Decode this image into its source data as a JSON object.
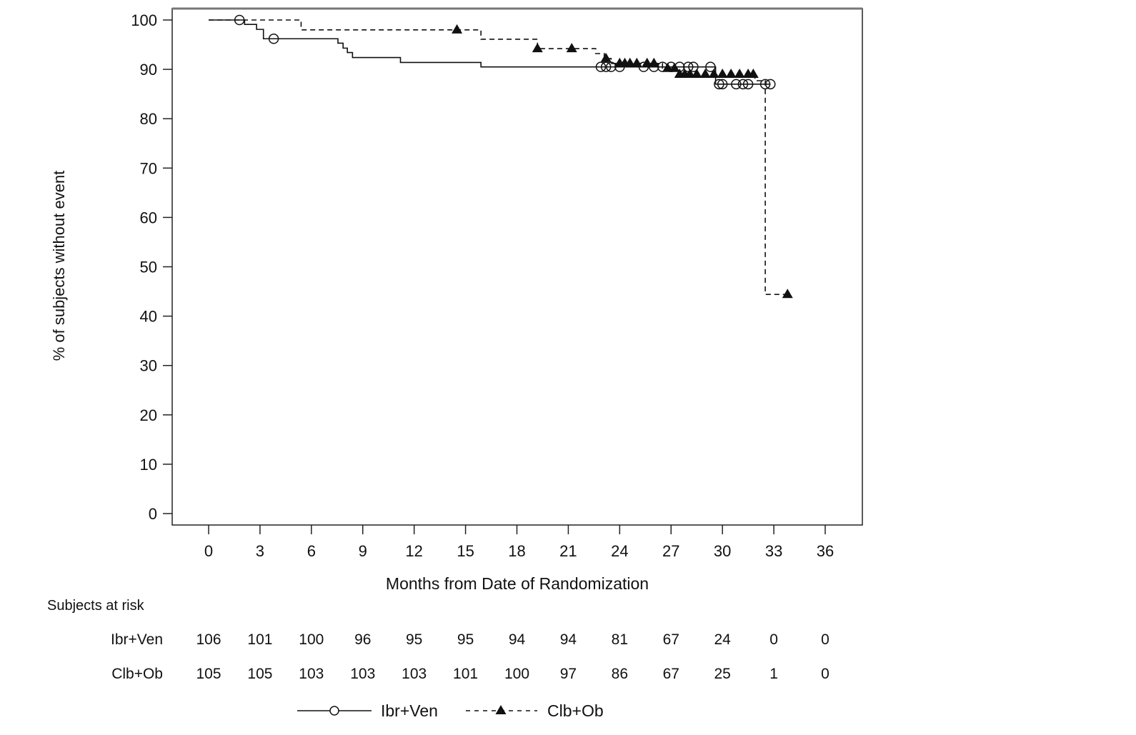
{
  "chart_data": {
    "type": "line",
    "subtype": "kaplan-meier",
    "title": "",
    "xlabel": "Months from Date of Randomization",
    "ylabel": "% of subjects without event",
    "xlim": [
      0,
      36
    ],
    "ylim": [
      0,
      100
    ],
    "x_ticks": [
      0,
      3,
      6,
      9,
      12,
      15,
      18,
      21,
      24,
      27,
      30,
      33,
      36
    ],
    "y_ticks": [
      0,
      10,
      20,
      30,
      40,
      50,
      60,
      70,
      80,
      90,
      100
    ],
    "grid": false,
    "legend_position": "bottom",
    "series": [
      {
        "name": "Ibr+Ven",
        "line_style": "solid",
        "marker": "open-circle",
        "color": "#111111",
        "steps": [
          [
            0,
            100
          ],
          [
            2.1,
            99.1
          ],
          [
            2.8,
            98.1
          ],
          [
            3.2,
            96.2
          ],
          [
            7.55,
            95.3
          ],
          [
            7.85,
            94.3
          ],
          [
            8.1,
            93.4
          ],
          [
            8.4,
            92.4
          ],
          [
            11.2,
            91.4
          ],
          [
            15.9,
            90.5
          ],
          [
            29.6,
            87.0
          ]
        ],
        "end": 32.8,
        "censored": [
          1.8,
          3.8,
          22.9,
          23.2,
          23.5,
          24.0,
          25.4,
          26.0,
          26.5,
          27.0,
          27.5,
          28.0,
          28.3,
          29.3,
          29.8,
          30.0,
          30.8,
          31.2,
          31.5,
          32.5,
          32.8
        ]
      },
      {
        "name": "Clb+Ob",
        "line_style": "dashed",
        "marker": "filled-triangle",
        "color": "#111111",
        "steps": [
          [
            0,
            100
          ],
          [
            5.4,
            98.0
          ],
          [
            15.9,
            96.1
          ],
          [
            19.2,
            94.2
          ],
          [
            22.6,
            93.2
          ],
          [
            23.1,
            92.2
          ],
          [
            23.5,
            91.2
          ],
          [
            26.5,
            90.2
          ],
          [
            27.3,
            89.0
          ],
          [
            31.9,
            87.7
          ],
          [
            32.5,
            44.4
          ]
        ],
        "end": 33.8,
        "censored": [
          14.5,
          19.2,
          21.2,
          23.2,
          24.0,
          24.3,
          24.6,
          25.0,
          25.6,
          26.0,
          26.8,
          27.2,
          27.5,
          27.8,
          28.1,
          28.5,
          29.0,
          29.5,
          30.0,
          30.5,
          31.0,
          31.5,
          31.8,
          33.8
        ]
      }
    ],
    "risk_table": {
      "title": "Subjects at risk",
      "times": [
        0,
        3,
        6,
        9,
        12,
        15,
        18,
        21,
        24,
        27,
        30,
        33,
        36
      ],
      "rows": [
        {
          "label": "Ibr+Ven",
          "values": [
            106,
            101,
            100,
            96,
            95,
            95,
            94,
            94,
            81,
            67,
            24,
            0,
            0
          ]
        },
        {
          "label": "Clb+Ob",
          "values": [
            105,
            105,
            103,
            103,
            103,
            101,
            100,
            97,
            86,
            67,
            25,
            1,
            0
          ]
        }
      ]
    }
  }
}
